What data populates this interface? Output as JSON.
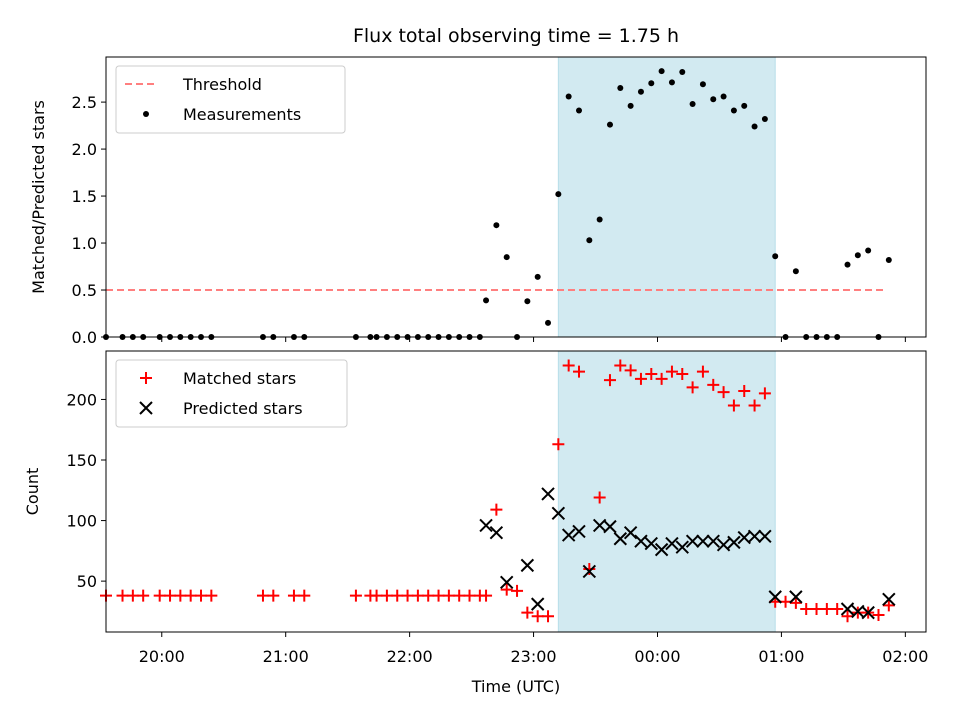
{
  "figure": {
    "title": "Flux total observing time = 1.75 h",
    "xlabel": "Time (UTC)"
  },
  "chart_data": [
    {
      "type": "scatter",
      "panel": "top",
      "ylabel": "Matched/Predicted stars",
      "xlim": [
        "19:33",
        "02:10"
      ],
      "ylim": [
        0,
        2.98
      ],
      "yticks": [
        0.0,
        0.5,
        1.0,
        1.5,
        2.0,
        2.5
      ],
      "ytick_labels": [
        "0.0",
        "0.5",
        "1.0",
        "1.5",
        "2.0",
        "2.5"
      ],
      "grid": false,
      "legend_position": "top-left",
      "shaded_span": {
        "start": "23:12",
        "end": "00:57",
        "color": "#add8e6"
      },
      "series": [
        {
          "name": "Threshold",
          "style": "dashed-line",
          "color": "#ff7f7f",
          "x": [
            "19:33",
            "01:50"
          ],
          "y": [
            0.5,
            0.5
          ]
        },
        {
          "name": "Measurements",
          "style": "dots",
          "color": "#000000",
          "points": [
            [
              "19:33",
              0
            ],
            [
              "19:41",
              0
            ],
            [
              "19:46",
              0
            ],
            [
              "19:51",
              0
            ],
            [
              "19:59",
              0
            ],
            [
              "20:04",
              0
            ],
            [
              "20:09",
              0
            ],
            [
              "20:14",
              0
            ],
            [
              "20:19",
              0
            ],
            [
              "20:24",
              0
            ],
            [
              "20:49",
              0
            ],
            [
              "20:54",
              0
            ],
            [
              "21:04",
              0
            ],
            [
              "21:09",
              0
            ],
            [
              "21:34",
              0
            ],
            [
              "21:41",
              0
            ],
            [
              "21:44",
              0
            ],
            [
              "21:49",
              0
            ],
            [
              "21:54",
              0
            ],
            [
              "21:59",
              0
            ],
            [
              "22:04",
              0
            ],
            [
              "22:09",
              0
            ],
            [
              "22:14",
              0
            ],
            [
              "22:19",
              0
            ],
            [
              "22:24",
              0
            ],
            [
              "22:29",
              0
            ],
            [
              "22:34",
              0
            ],
            [
              "22:37",
              0.39
            ],
            [
              "22:42",
              1.19
            ],
            [
              "22:47",
              0.85
            ],
            [
              "22:52",
              0
            ],
            [
              "22:57",
              0.38
            ],
            [
              "23:02",
              0.64
            ],
            [
              "23:07",
              0.15
            ],
            [
              "23:12",
              1.52
            ],
            [
              "23:17",
              2.56
            ],
            [
              "23:22",
              2.41
            ],
            [
              "23:27",
              1.03
            ],
            [
              "23:32",
              1.25
            ],
            [
              "23:37",
              2.26
            ],
            [
              "23:42",
              2.65
            ],
            [
              "23:47",
              2.46
            ],
            [
              "23:52",
              2.61
            ],
            [
              "23:57",
              2.7
            ],
            [
              "00:02",
              2.83
            ],
            [
              "00:07",
              2.71
            ],
            [
              "00:12",
              2.82
            ],
            [
              "00:17",
              2.48
            ],
            [
              "00:22",
              2.69
            ],
            [
              "00:27",
              2.53
            ],
            [
              "00:32",
              2.56
            ],
            [
              "00:37",
              2.41
            ],
            [
              "00:42",
              2.46
            ],
            [
              "00:47",
              2.24
            ],
            [
              "00:52",
              2.32
            ],
            [
              "00:57",
              0.86
            ],
            [
              "01:02",
              0
            ],
            [
              "01:07",
              0.7
            ],
            [
              "01:12",
              0
            ],
            [
              "01:17",
              0
            ],
            [
              "01:22",
              0
            ],
            [
              "01:27",
              0
            ],
            [
              "01:32",
              0.77
            ],
            [
              "01:37",
              0.87
            ],
            [
              "01:42",
              0.92
            ],
            [
              "01:47",
              0
            ],
            [
              "01:52",
              0.82
            ]
          ]
        }
      ]
    },
    {
      "type": "scatter",
      "panel": "bottom",
      "ylabel": "Count",
      "xlim": [
        "19:33",
        "02:10"
      ],
      "ylim": [
        8,
        240
      ],
      "yticks": [
        50,
        100,
        150,
        200
      ],
      "ytick_labels": [
        "50",
        "100",
        "150",
        "200"
      ],
      "xticks": [
        "20:00",
        "21:00",
        "22:00",
        "23:00",
        "00:00",
        "01:00",
        "02:00"
      ],
      "xtick_labels": [
        "20:00",
        "21:00",
        "22:00",
        "23:00",
        "00:00",
        "01:00",
        "02:00"
      ],
      "grid": false,
      "legend_position": "top-left",
      "shaded_span": {
        "start": "23:12",
        "end": "00:57",
        "color": "#add8e6"
      },
      "series": [
        {
          "name": "Matched stars",
          "marker": "+",
          "color": "#ff0000",
          "points": [
            [
              "19:33",
              38
            ],
            [
              "19:41",
              38
            ],
            [
              "19:46",
              38
            ],
            [
              "19:51",
              38
            ],
            [
              "19:59",
              38
            ],
            [
              "20:04",
              38
            ],
            [
              "20:09",
              38
            ],
            [
              "20:14",
              38
            ],
            [
              "20:19",
              38
            ],
            [
              "20:24",
              38
            ],
            [
              "20:49",
              38
            ],
            [
              "20:54",
              38
            ],
            [
              "21:04",
              38
            ],
            [
              "21:09",
              38
            ],
            [
              "21:34",
              38
            ],
            [
              "21:41",
              38
            ],
            [
              "21:44",
              38
            ],
            [
              "21:49",
              38
            ],
            [
              "21:54",
              38
            ],
            [
              "21:59",
              38
            ],
            [
              "22:04",
              38
            ],
            [
              "22:09",
              38
            ],
            [
              "22:14",
              38
            ],
            [
              "22:19",
              38
            ],
            [
              "22:24",
              38
            ],
            [
              "22:29",
              38
            ],
            [
              "22:34",
              38
            ],
            [
              "22:37",
              38
            ],
            [
              "22:42",
              109
            ],
            [
              "22:47",
              43
            ],
            [
              "22:52",
              42
            ],
            [
              "22:57",
              24
            ],
            [
              "23:02",
              21
            ],
            [
              "23:07",
              21
            ],
            [
              "23:12",
              163
            ],
            [
              "23:17",
              228
            ],
            [
              "23:22",
              223
            ],
            [
              "23:27",
              60
            ],
            [
              "23:32",
              119
            ],
            [
              "23:37",
              216
            ],
            [
              "23:42",
              228
            ],
            [
              "23:47",
              224
            ],
            [
              "23:52",
              217
            ],
            [
              "23:57",
              221
            ],
            [
              "00:02",
              217
            ],
            [
              "00:07",
              223
            ],
            [
              "00:12",
              221
            ],
            [
              "00:17",
              210
            ],
            [
              "00:22",
              223
            ],
            [
              "00:27",
              212
            ],
            [
              "00:32",
              206
            ],
            [
              "00:37",
              195
            ],
            [
              "00:42",
              207
            ],
            [
              "00:47",
              195
            ],
            [
              "00:52",
              205
            ],
            [
              "00:57",
              33
            ],
            [
              "01:02",
              33
            ],
            [
              "01:07",
              32
            ],
            [
              "01:12",
              27
            ],
            [
              "01:17",
              27
            ],
            [
              "01:22",
              27
            ],
            [
              "01:27",
              27
            ],
            [
              "01:32",
              21
            ],
            [
              "01:37",
              24
            ],
            [
              "01:42",
              24
            ],
            [
              "01:47",
              22
            ],
            [
              "01:52",
              30
            ]
          ]
        },
        {
          "name": "Predicted stars",
          "marker": "x",
          "color": "#000000",
          "points": [
            [
              "22:37",
              96
            ],
            [
              "22:42",
              90
            ],
            [
              "22:47",
              49
            ],
            [
              "22:57",
              63
            ],
            [
              "23:02",
              31
            ],
            [
              "23:07",
              122
            ],
            [
              "23:12",
              106
            ],
            [
              "23:17",
              88
            ],
            [
              "23:22",
              91
            ],
            [
              "23:27",
              58
            ],
            [
              "23:32",
              96
            ],
            [
              "23:37",
              95
            ],
            [
              "23:42",
              85
            ],
            [
              "23:47",
              90
            ],
            [
              "23:52",
              83
            ],
            [
              "23:57",
              81
            ],
            [
              "00:02",
              76
            ],
            [
              "00:07",
              81
            ],
            [
              "00:12",
              78
            ],
            [
              "00:17",
              83
            ],
            [
              "00:22",
              83
            ],
            [
              "00:27",
              83
            ],
            [
              "00:32",
              80
            ],
            [
              "00:37",
              82
            ],
            [
              "00:42",
              86
            ],
            [
              "00:47",
              87
            ],
            [
              "00:52",
              87
            ],
            [
              "00:57",
              37
            ],
            [
              "01:07",
              37
            ],
            [
              "01:32",
              27
            ],
            [
              "01:37",
              25
            ],
            [
              "01:42",
              24
            ],
            [
              "01:52",
              35
            ]
          ]
        }
      ]
    }
  ]
}
